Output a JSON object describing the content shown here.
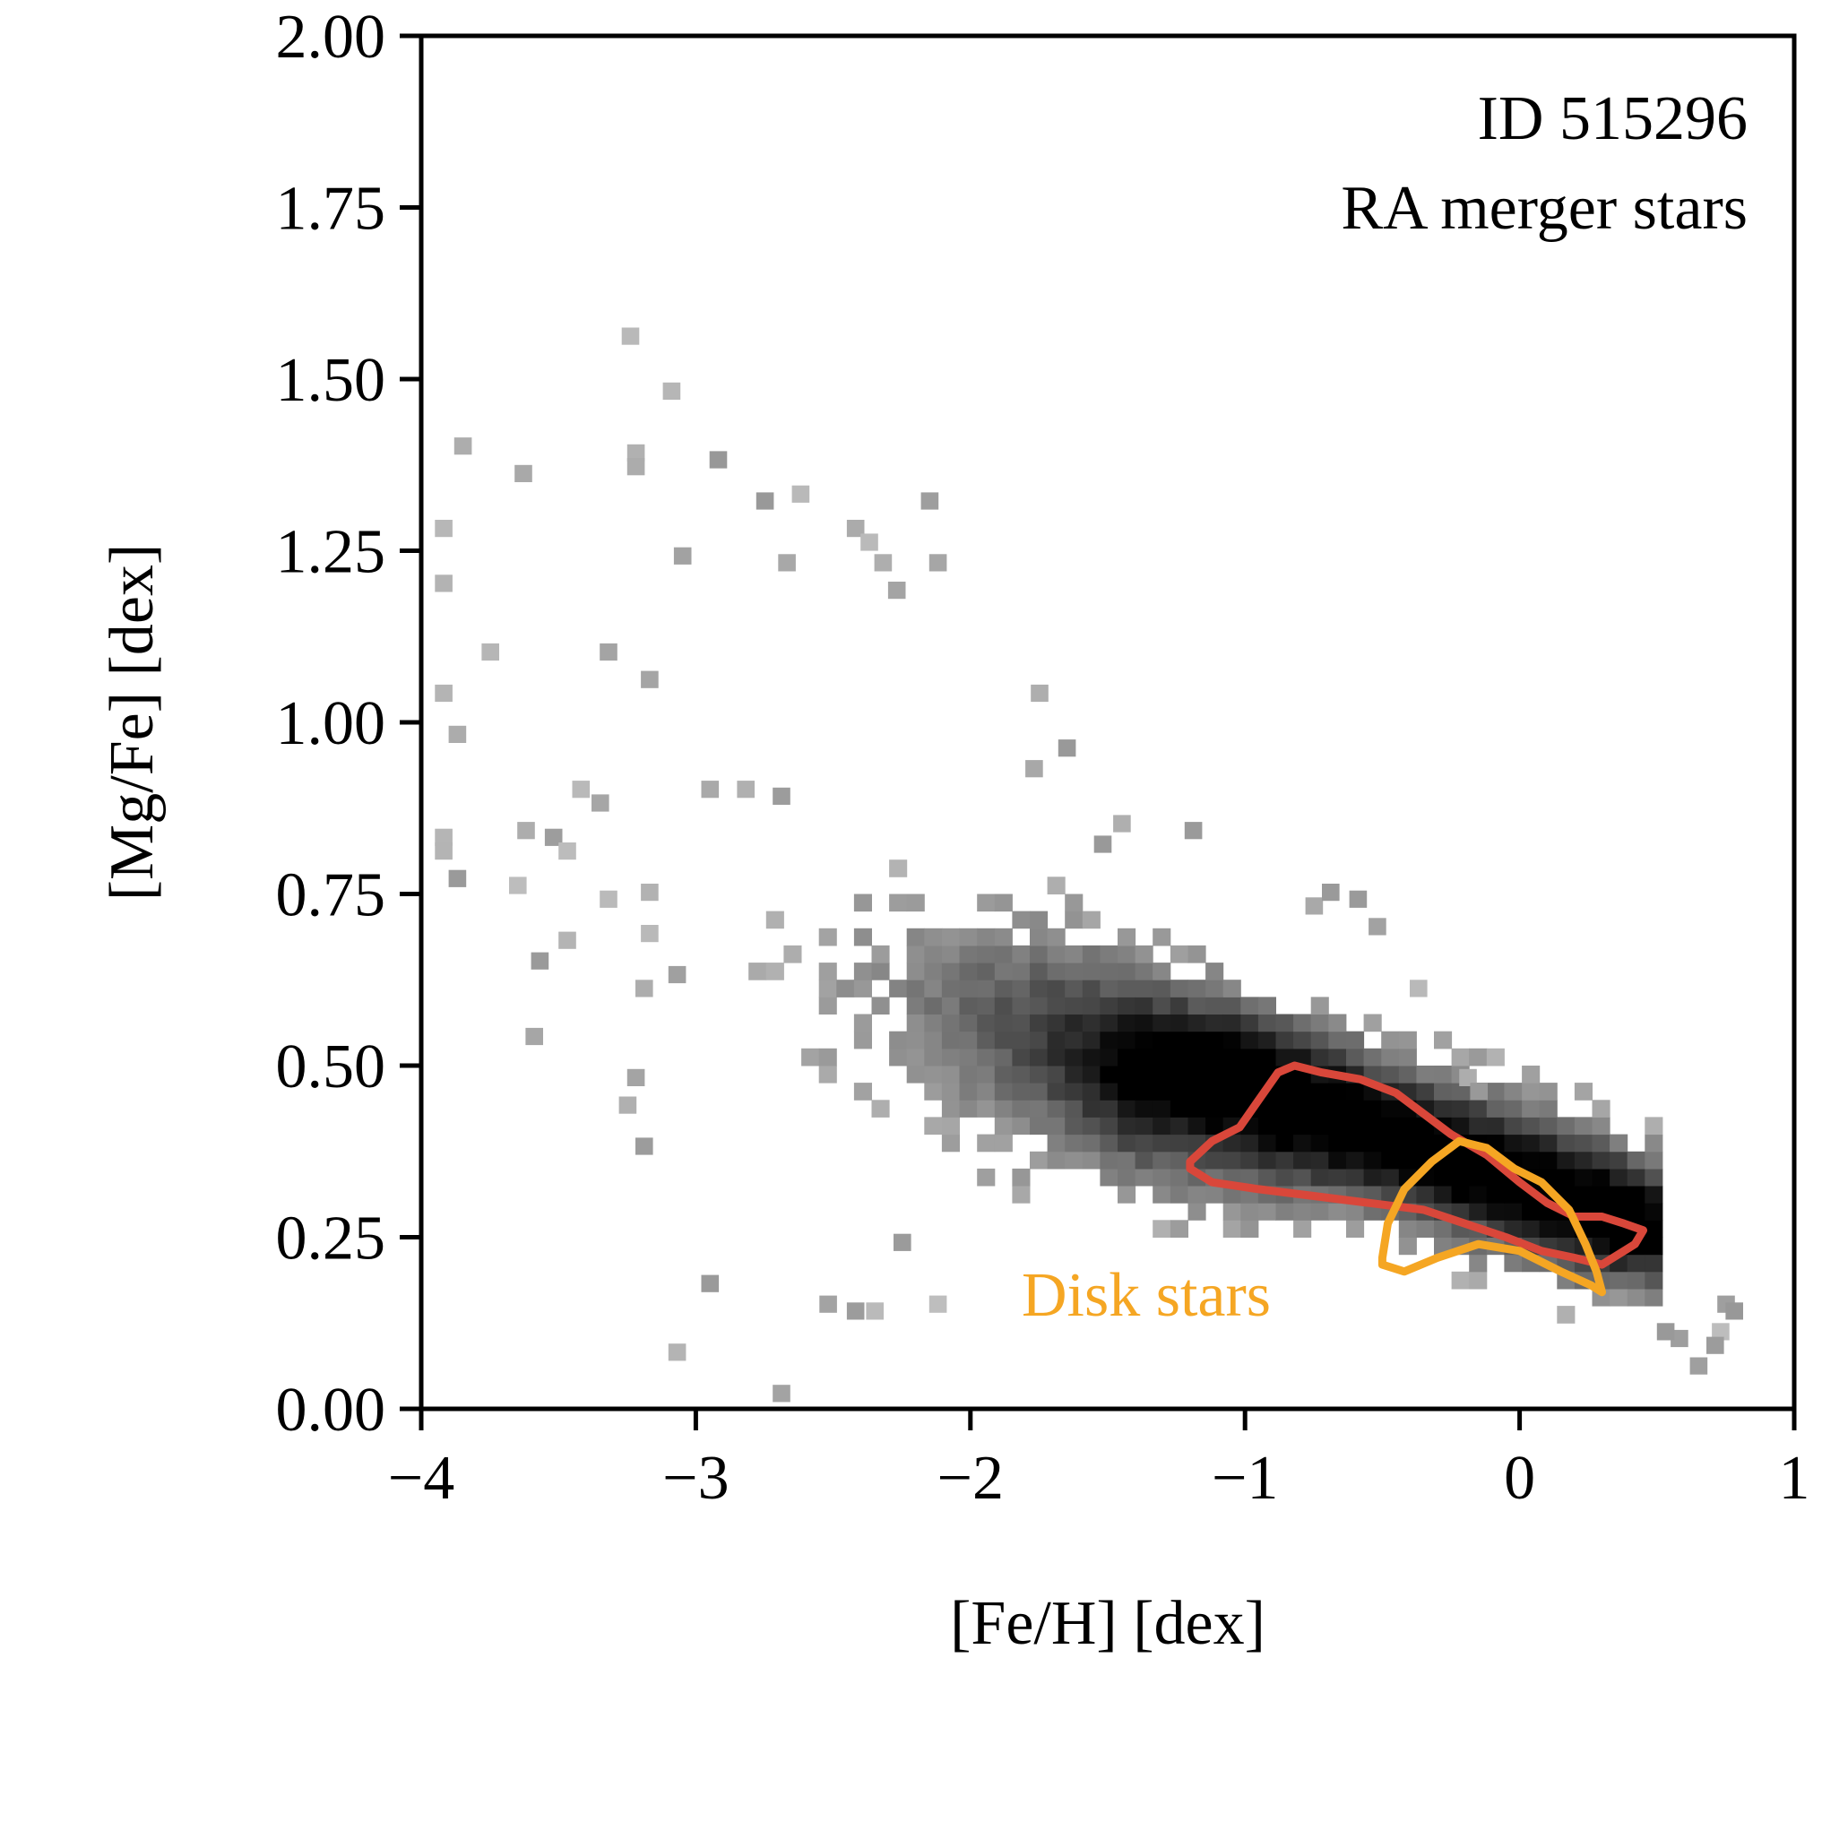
{
  "chart_data": {
    "type": "heatmap",
    "title": "",
    "xlabel": "[Fe/H] [dex]",
    "ylabel": "[Mg/Fe] [dex]",
    "xlim": [
      -4,
      1
    ],
    "ylim": [
      0,
      2
    ],
    "xticks": [
      -4,
      -3,
      -2,
      -1,
      0,
      1
    ],
    "xtick_labels": [
      "−4",
      "−3",
      "−2",
      "−1",
      "0",
      "1"
    ],
    "yticks": [
      0,
      0.25,
      0.5,
      0.75,
      1.0,
      1.25,
      1.5,
      1.75,
      2.0
    ],
    "ytick_labels": [
      "0.00",
      "0.25",
      "0.50",
      "0.75",
      "1.00",
      "1.25",
      "1.50",
      "1.75",
      "2.00"
    ],
    "grid": false,
    "annotations": [
      "ID 515296",
      "RA merger stars"
    ],
    "colormap": "greys",
    "density_core": [
      {
        "feh": -0.6,
        "mgfe": 0.38,
        "weight": 1.0
      },
      {
        "feh": -0.2,
        "mgfe": 0.31,
        "weight": 0.75
      },
      {
        "feh": -1.1,
        "mgfe": 0.45,
        "weight": 0.45
      },
      {
        "feh": -1.7,
        "mgfe": 0.6,
        "weight": 0.22
      },
      {
        "feh": 0.3,
        "mgfe": 0.22,
        "weight": 0.3
      }
    ],
    "outliers": [
      [
        -3.27,
        1.55
      ],
      [
        -3.12,
        1.47
      ],
      [
        -3.25,
        1.38
      ],
      [
        -3.25,
        1.36
      ],
      [
        -2.95,
        1.37
      ],
      [
        -3.88,
        1.39
      ],
      [
        -3.66,
        1.35
      ],
      [
        -3.95,
        1.27
      ],
      [
        -3.95,
        1.19
      ],
      [
        -2.65,
        1.32
      ],
      [
        -2.78,
        1.31
      ],
      [
        -2.7,
        1.22
      ],
      [
        -3.08,
        1.23
      ],
      [
        -2.45,
        1.27
      ],
      [
        -2.35,
        1.22
      ],
      [
        -2.4,
        1.25
      ],
      [
        -2.3,
        1.18
      ],
      [
        -2.18,
        1.31
      ],
      [
        -2.15,
        1.22
      ],
      [
        -3.35,
        1.09
      ],
      [
        -3.2,
        1.05
      ],
      [
        -3.78,
        1.09
      ],
      [
        -3.95,
        1.03
      ],
      [
        -3.9,
        0.97
      ],
      [
        -3.95,
        0.82
      ],
      [
        -3.95,
        0.8
      ],
      [
        -3.9,
        0.76
      ],
      [
        -3.45,
        0.89
      ],
      [
        -3.38,
        0.87
      ],
      [
        -3.55,
        0.82
      ],
      [
        -3.65,
        0.83
      ],
      [
        -3.5,
        0.8
      ],
      [
        -3.68,
        0.75
      ],
      [
        -3.35,
        0.73
      ],
      [
        -3.5,
        0.67
      ],
      [
        -3.6,
        0.64
      ],
      [
        -3.2,
        0.74
      ],
      [
        -3.2,
        0.68
      ],
      [
        -3.22,
        0.6
      ],
      [
        -3.1,
        0.62
      ],
      [
        -3.62,
        0.53
      ],
      [
        -3.25,
        0.47
      ],
      [
        -3.22,
        0.37
      ],
      [
        -3.28,
        0.43
      ],
      [
        -2.98,
        0.89
      ],
      [
        -2.85,
        0.89
      ],
      [
        -2.72,
        0.88
      ],
      [
        -2.98,
        0.17
      ],
      [
        -3.1,
        0.07
      ],
      [
        -2.72,
        0.01
      ],
      [
        -2.45,
        0.13
      ],
      [
        -2.38,
        0.13
      ],
      [
        -2.55,
        0.14
      ],
      [
        -2.28,
        0.23
      ],
      [
        -2.15,
        0.14
      ],
      [
        -1.78,
        1.03
      ],
      [
        -1.68,
        0.95
      ],
      [
        -1.8,
        0.92
      ],
      [
        -1.55,
        0.81
      ],
      [
        -1.48,
        0.84
      ],
      [
        -1.22,
        0.83
      ],
      [
        -0.78,
        0.72
      ],
      [
        -0.72,
        0.74
      ],
      [
        -0.62,
        0.73
      ],
      [
        -0.55,
        0.69
      ],
      [
        -0.4,
        0.6
      ],
      [
        -0.22,
        0.47
      ],
      [
        -0.18,
        0.45
      ],
      [
        0.72,
        0.14
      ],
      [
        0.75,
        0.13
      ],
      [
        0.7,
        0.1
      ],
      [
        0.68,
        0.08
      ],
      [
        0.62,
        0.05
      ],
      [
        0.55,
        0.09
      ],
      [
        0.5,
        0.1
      ]
    ]
  },
  "contours": [
    {
      "label": "",
      "color": "#d9473a",
      "points": [
        [
          -1.2,
          0.36
        ],
        [
          -1.12,
          0.39
        ],
        [
          -1.02,
          0.41
        ],
        [
          -0.95,
          0.45
        ],
        [
          -0.88,
          0.49
        ],
        [
          -0.82,
          0.5
        ],
        [
          -0.72,
          0.49
        ],
        [
          -0.58,
          0.48
        ],
        [
          -0.45,
          0.46
        ],
        [
          -0.35,
          0.43
        ],
        [
          -0.25,
          0.4
        ],
        [
          -0.12,
          0.37
        ],
        [
          0.0,
          0.33
        ],
        [
          0.1,
          0.3
        ],
        [
          0.2,
          0.28
        ],
        [
          0.3,
          0.28
        ],
        [
          0.38,
          0.27
        ],
        [
          0.45,
          0.26
        ],
        [
          0.42,
          0.24
        ],
        [
          0.3,
          0.21
        ],
        [
          0.2,
          0.22
        ],
        [
          0.08,
          0.23
        ],
        [
          -0.05,
          0.25
        ],
        [
          -0.2,
          0.27
        ],
        [
          -0.35,
          0.29
        ],
        [
          -0.55,
          0.3
        ],
        [
          -0.75,
          0.31
        ],
        [
          -0.95,
          0.32
        ],
        [
          -1.12,
          0.33
        ],
        [
          -1.2,
          0.35
        ]
      ]
    },
    {
      "label": "Disk stars",
      "color": "#f5a623",
      "points": [
        [
          -0.5,
          0.22
        ],
        [
          -0.48,
          0.27
        ],
        [
          -0.42,
          0.32
        ],
        [
          -0.32,
          0.36
        ],
        [
          -0.22,
          0.39
        ],
        [
          -0.12,
          0.38
        ],
        [
          -0.02,
          0.35
        ],
        [
          0.08,
          0.33
        ],
        [
          0.18,
          0.29
        ],
        [
          0.24,
          0.24
        ],
        [
          0.28,
          0.2
        ],
        [
          0.3,
          0.17
        ],
        [
          0.26,
          0.18
        ],
        [
          0.15,
          0.2
        ],
        [
          0.0,
          0.23
        ],
        [
          -0.15,
          0.24
        ],
        [
          -0.3,
          0.22
        ],
        [
          -0.42,
          0.2
        ],
        [
          -0.5,
          0.21
        ]
      ]
    }
  ]
}
